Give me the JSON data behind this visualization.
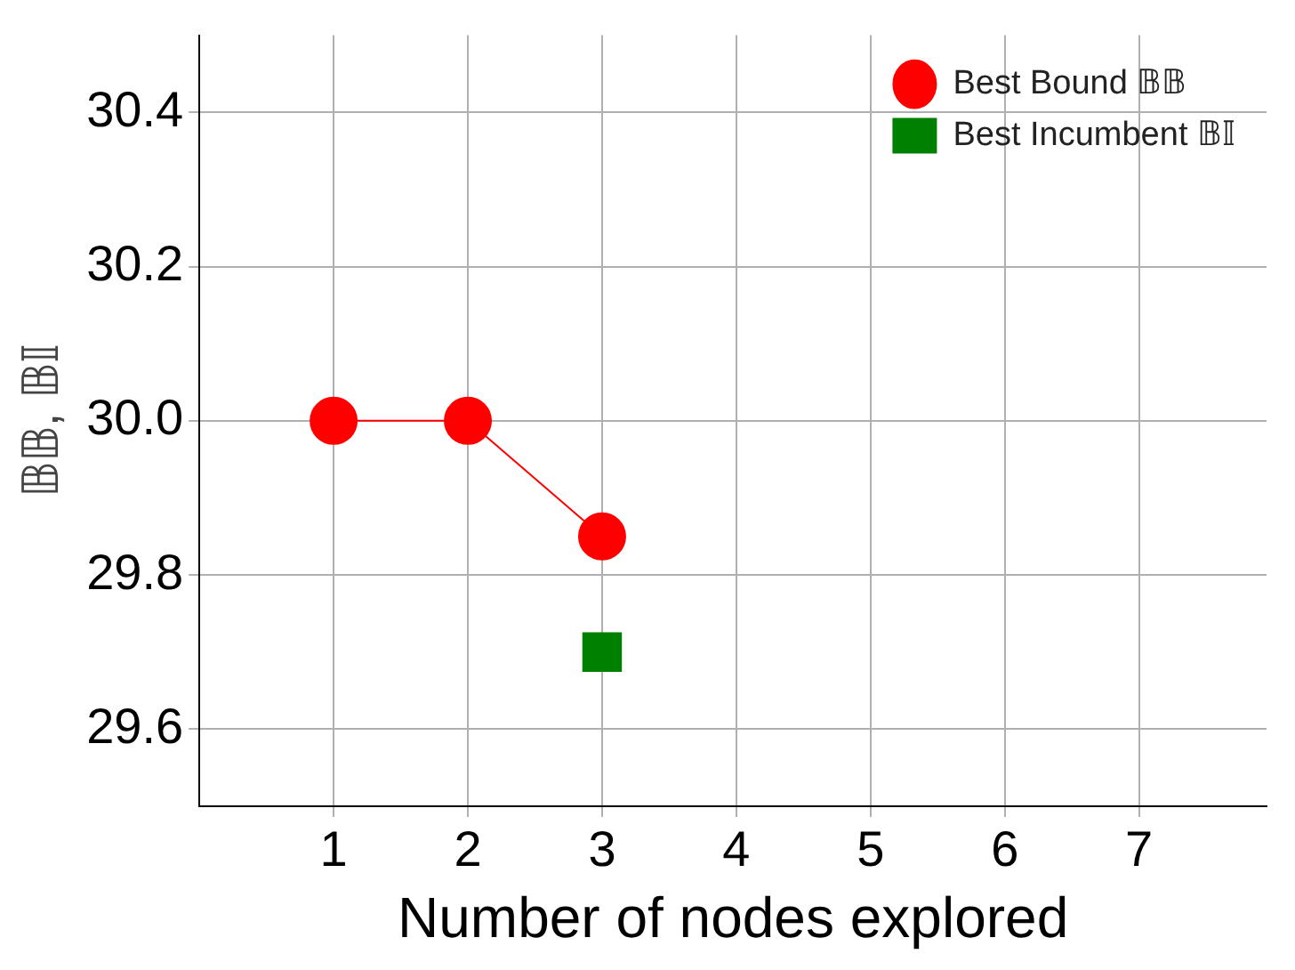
{
  "chart_data": {
    "type": "line",
    "xlabel": "Number of nodes explored",
    "ylabel": "𝔹𝔹, 𝔹𝕀",
    "xlim": [
      0,
      7.95
    ],
    "xticks": [
      1,
      2,
      3,
      4,
      5,
      6,
      7
    ],
    "ylim": [
      29.5,
      30.5
    ],
    "yticks": [
      {
        "value": 29.6,
        "label": "29.6"
      },
      {
        "value": 29.8,
        "label": "29.8"
      },
      {
        "value": 30,
        "label": "30.0"
      },
      {
        "value": 30.2,
        "label": "30.2"
      },
      {
        "value": 30.4,
        "label": "30.4"
      }
    ],
    "grid": true,
    "legend": "top right",
    "series": [
      {
        "name": "Best Bound 𝔹𝔹",
        "color": "#ff0000",
        "x": [
          1,
          2,
          3
        ],
        "values": [
          30.0,
          30.0,
          29.85
        ],
        "marker": "circle"
      },
      {
        "name": "Best Incumbent 𝔹𝕀",
        "color": "#008000",
        "x": [
          3
        ],
        "values": [
          29.7
        ],
        "marker": "square"
      }
    ]
  }
}
